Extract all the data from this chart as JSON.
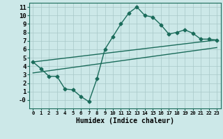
{
  "xlabel": "Humidex (Indice chaleur)",
  "ylabel": "",
  "background_color": "#cce8e8",
  "line_color": "#1a6b5a",
  "xlim": [
    -0.5,
    23.5
  ],
  "ylim": [
    -1,
    11.5
  ],
  "xticks": [
    0,
    1,
    2,
    3,
    4,
    5,
    6,
    7,
    8,
    9,
    10,
    11,
    12,
    13,
    14,
    15,
    16,
    17,
    18,
    19,
    20,
    21,
    22,
    23
  ],
  "yticks": [
    0,
    1,
    2,
    3,
    4,
    5,
    6,
    7,
    8,
    9,
    10,
    11
  ],
  "curve1_x": [
    0,
    1,
    2,
    3,
    4,
    5,
    6,
    7,
    8,
    9,
    10,
    11,
    12,
    13,
    14,
    15,
    16,
    17,
    18,
    19,
    20,
    21,
    22,
    23
  ],
  "curve1_y": [
    4.5,
    3.7,
    2.8,
    2.8,
    1.3,
    1.2,
    0.4,
    -0.2,
    2.5,
    6.0,
    7.5,
    9.0,
    10.3,
    11.0,
    10.0,
    9.8,
    8.9,
    7.8,
    8.0,
    8.3,
    7.9,
    7.2,
    7.2,
    7.1
  ],
  "curve2_x": [
    0,
    23
  ],
  "curve2_y": [
    4.5,
    7.1
  ],
  "curve3_x": [
    0,
    23
  ],
  "curve3_y": [
    3.2,
    6.2
  ],
  "grid_color": "#b0ceceb",
  "marker": "D",
  "marker_size": 2.5,
  "line_width": 1.0,
  "xlabel_fontsize": 7,
  "tick_fontsize": 6.5
}
